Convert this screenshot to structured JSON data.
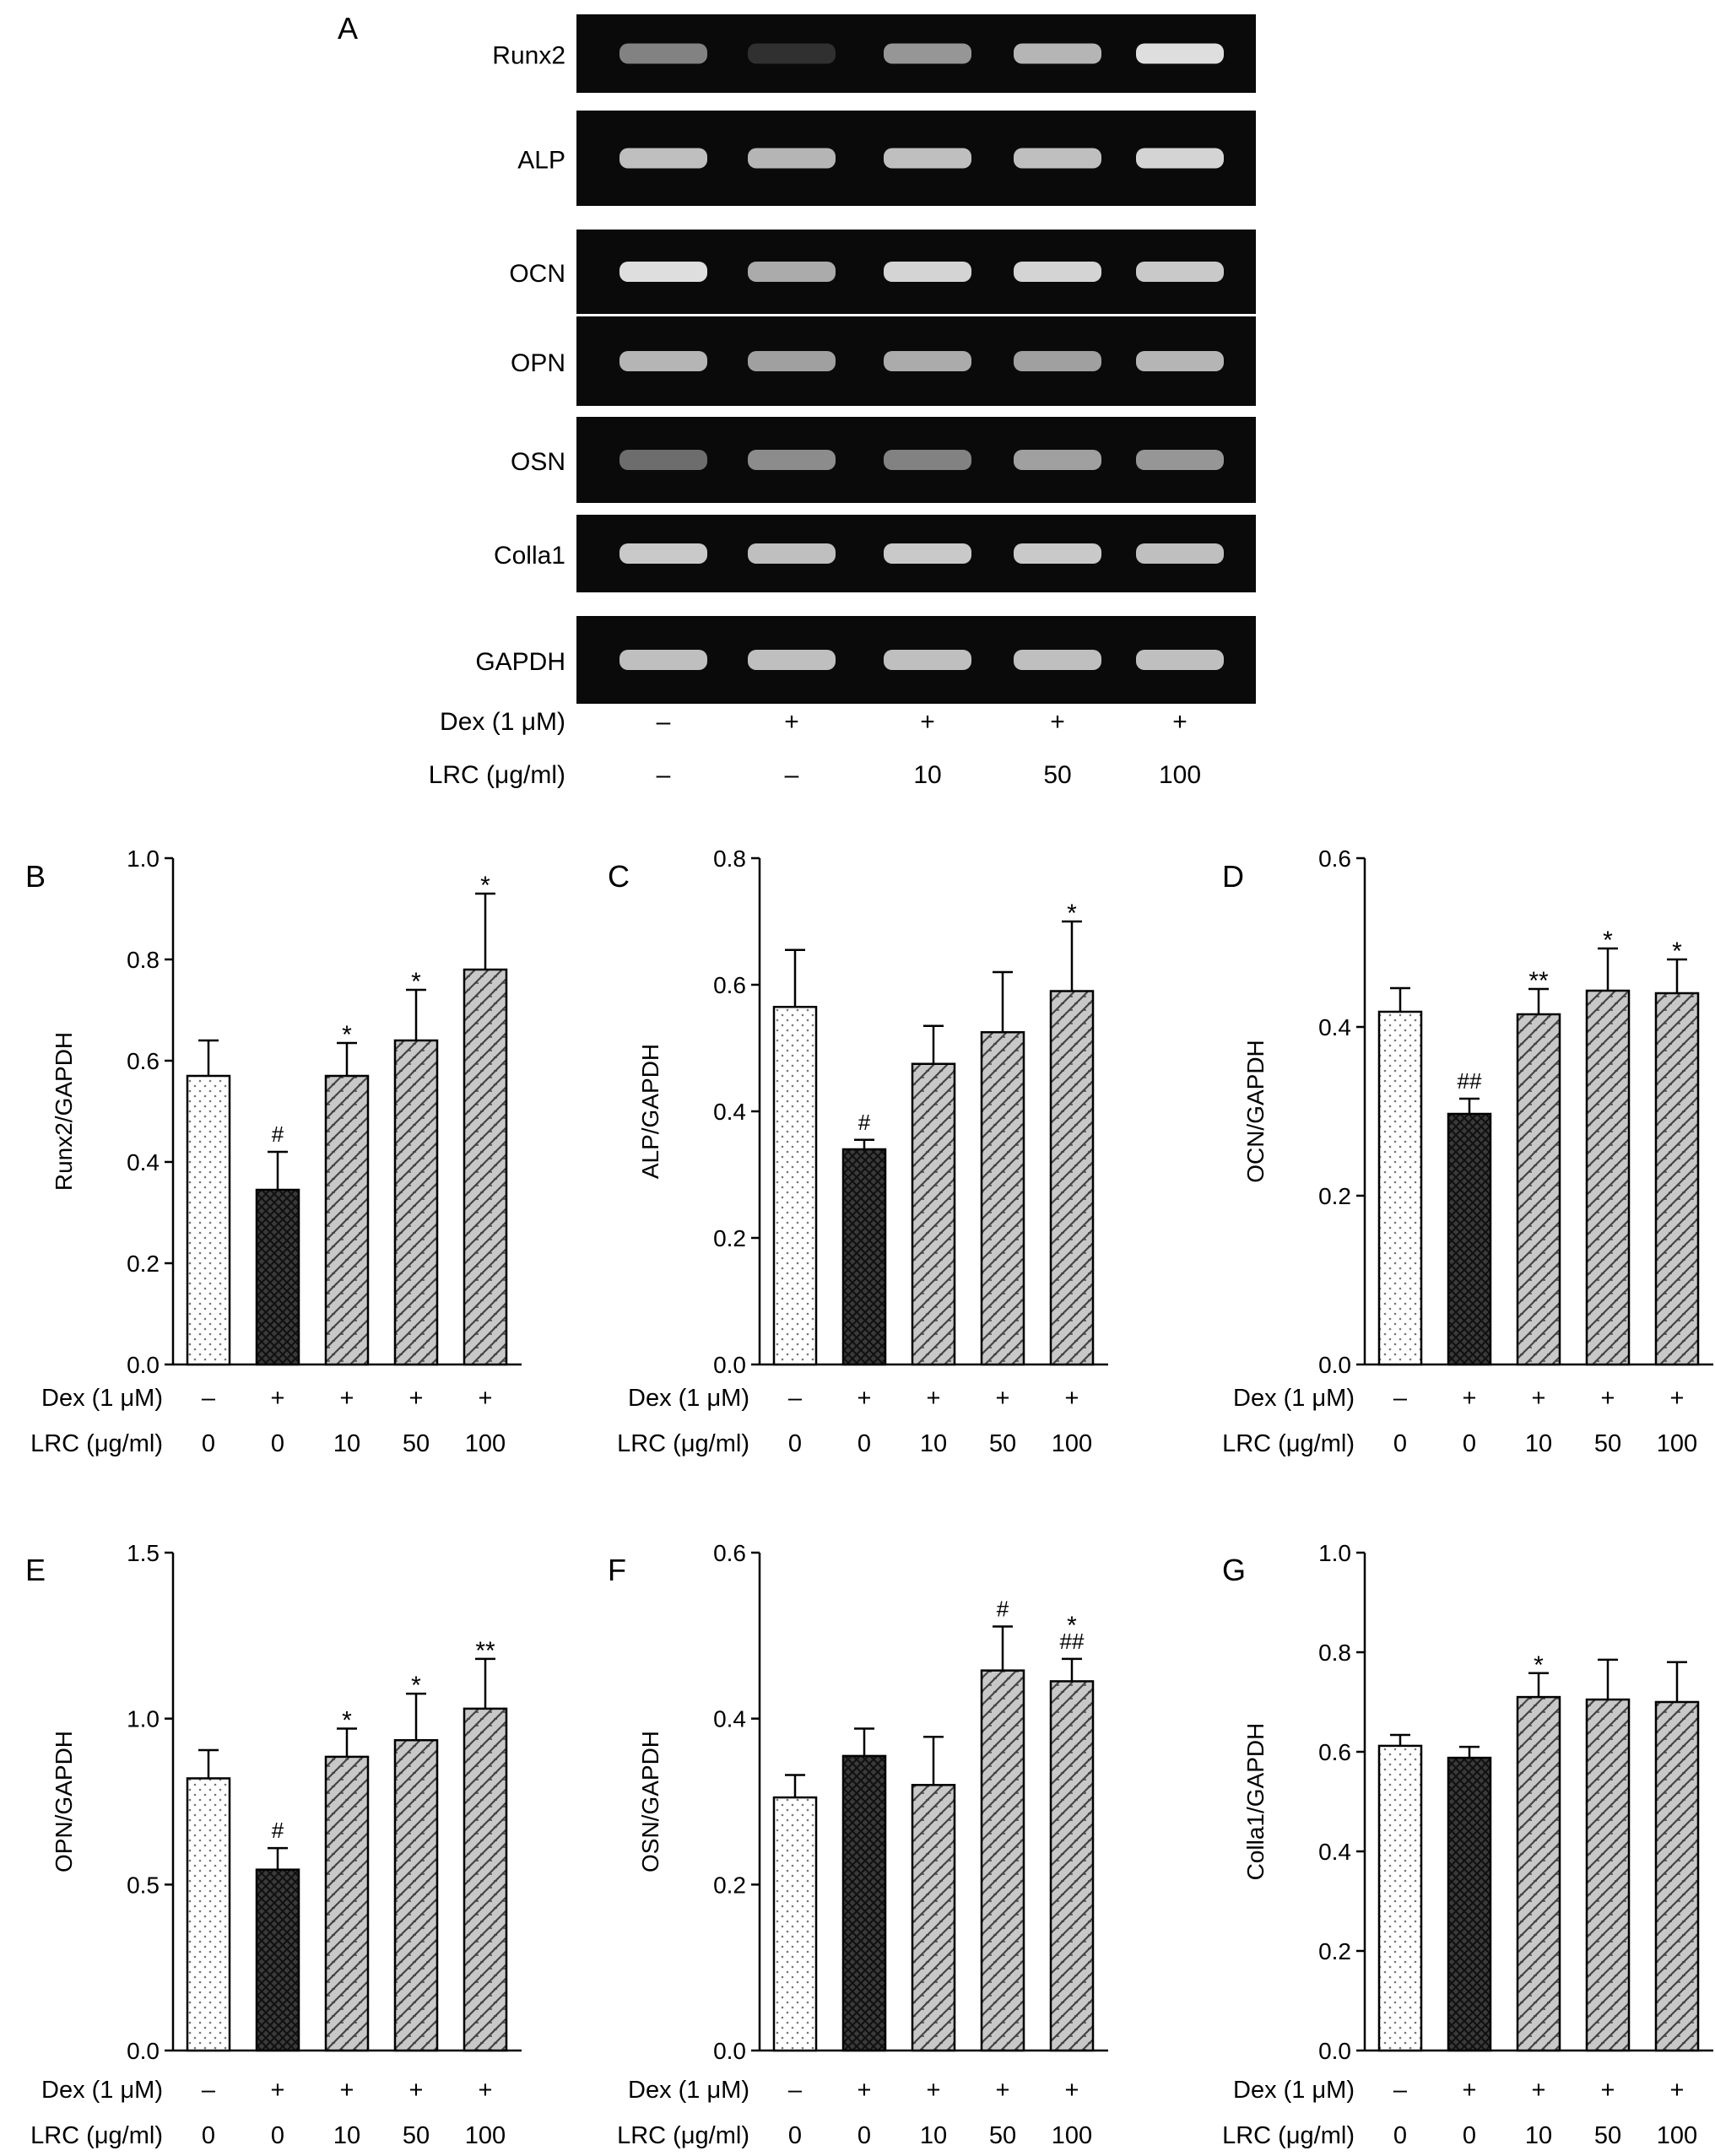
{
  "gel": {
    "panel_label": "A",
    "rows": [
      {
        "label": "Runx2",
        "intensities": [
          0.45,
          0.05,
          0.55,
          0.7,
          0.9
        ]
      },
      {
        "label": "ALP",
        "intensities": [
          0.75,
          0.7,
          0.75,
          0.75,
          0.85
        ]
      },
      {
        "label": "OCN",
        "intensities": [
          0.9,
          0.65,
          0.85,
          0.85,
          0.8
        ]
      },
      {
        "label": "OPN",
        "intensities": [
          0.7,
          0.6,
          0.65,
          0.6,
          0.7
        ]
      },
      {
        "label": "OSN",
        "intensities": [
          0.35,
          0.5,
          0.45,
          0.6,
          0.55
        ]
      },
      {
        "label": "Colla1",
        "intensities": [
          0.8,
          0.75,
          0.8,
          0.8,
          0.75
        ]
      },
      {
        "label": "GAPDH",
        "intensities": [
          0.75,
          0.75,
          0.75,
          0.75,
          0.75
        ]
      }
    ],
    "treatments": [
      {
        "label": "Dex (1 μM)",
        "values": [
          "–",
          "+",
          "+",
          "+",
          "+"
        ]
      },
      {
        "label": "LRC (μg/ml)",
        "values": [
          "–",
          "–",
          "10",
          "50",
          "100"
        ]
      }
    ]
  },
  "treatment_rows": [
    {
      "label": "Dex (1 μM)",
      "values": [
        "–",
        "+",
        "+",
        "+",
        "+"
      ]
    },
    {
      "label": "LRC (μg/ml)",
      "values": [
        "0",
        "0",
        "10",
        "50",
        "100"
      ]
    }
  ],
  "bar_patterns": [
    "dots-light",
    "crosshatch-dark",
    "diagonal-hatch",
    "diagonal-hatch",
    "diagonal-hatch"
  ],
  "chart_data": [
    {
      "type": "bar",
      "panel_label": "B",
      "ylabel": "Runx2/GAPDH",
      "ylim": [
        0,
        1.0
      ],
      "yticks": [
        "0.0",
        "0.2",
        "0.4",
        "0.6",
        "0.8",
        "1.0"
      ],
      "categories": [
        "0",
        "0",
        "10",
        "50",
        "100"
      ],
      "values": [
        0.57,
        0.345,
        0.57,
        0.64,
        0.78
      ],
      "errors": [
        0.07,
        0.075,
        0.065,
        0.1,
        0.15
      ],
      "annotations": [
        "",
        "#",
        "*",
        "*",
        "*"
      ]
    },
    {
      "type": "bar",
      "panel_label": "C",
      "ylabel": "ALP/GAPDH",
      "ylim": [
        0,
        0.8
      ],
      "yticks": [
        "0.0",
        "0.2",
        "0.4",
        "0.6",
        "0.8"
      ],
      "categories": [
        "0",
        "0",
        "10",
        "50",
        "100"
      ],
      "values": [
        0.565,
        0.34,
        0.475,
        0.525,
        0.59
      ],
      "errors": [
        0.09,
        0.015,
        0.06,
        0.095,
        0.11
      ],
      "annotations": [
        "",
        "#",
        "",
        "",
        "*"
      ]
    },
    {
      "type": "bar",
      "panel_label": "D",
      "ylabel": "OCN/GAPDH",
      "ylim": [
        0,
        0.6
      ],
      "yticks": [
        "0.0",
        "0.2",
        "0.4",
        "0.6"
      ],
      "categories": [
        "0",
        "0",
        "10",
        "50",
        "100"
      ],
      "values": [
        0.418,
        0.297,
        0.415,
        0.443,
        0.44
      ],
      "errors": [
        0.028,
        0.018,
        0.03,
        0.05,
        0.04
      ],
      "annotations": [
        "",
        "##",
        "**",
        "*",
        "*"
      ]
    },
    {
      "type": "bar",
      "panel_label": "E",
      "ylabel": "OPN/GAPDH",
      "ylim": [
        0,
        1.5
      ],
      "yticks": [
        "0.0",
        "0.5",
        "1.0",
        "1.5"
      ],
      "categories": [
        "0",
        "0",
        "10",
        "50",
        "100"
      ],
      "values": [
        0.82,
        0.545,
        0.885,
        0.935,
        1.03
      ],
      "errors": [
        0.085,
        0.065,
        0.085,
        0.14,
        0.15
      ],
      "annotations": [
        "",
        "#",
        "*",
        "*",
        "**"
      ]
    },
    {
      "type": "bar",
      "panel_label": "F",
      "ylabel": "OSN/GAPDH",
      "ylim": [
        0,
        0.6
      ],
      "yticks": [
        "0.0",
        "0.2",
        "0.4",
        "0.6"
      ],
      "categories": [
        "0",
        "0",
        "10",
        "50",
        "100"
      ],
      "values": [
        0.305,
        0.355,
        0.32,
        0.458,
        0.445
      ],
      "errors": [
        0.027,
        0.033,
        0.058,
        0.053,
        0.027
      ],
      "annotations": [
        "",
        "",
        "",
        "#",
        "*\n##"
      ]
    },
    {
      "type": "bar",
      "panel_label": "G",
      "ylabel": "Colla1/GAPDH",
      "ylim": [
        0,
        1.0
      ],
      "yticks": [
        "0.0",
        "0.2",
        "0.4",
        "0.6",
        "0.8",
        "1.0"
      ],
      "categories": [
        "0",
        "0",
        "10",
        "50",
        "100"
      ],
      "values": [
        0.612,
        0.588,
        0.71,
        0.705,
        0.7
      ],
      "errors": [
        0.022,
        0.022,
        0.048,
        0.08,
        0.08
      ],
      "annotations": [
        "",
        "",
        "*",
        "",
        ""
      ]
    }
  ]
}
